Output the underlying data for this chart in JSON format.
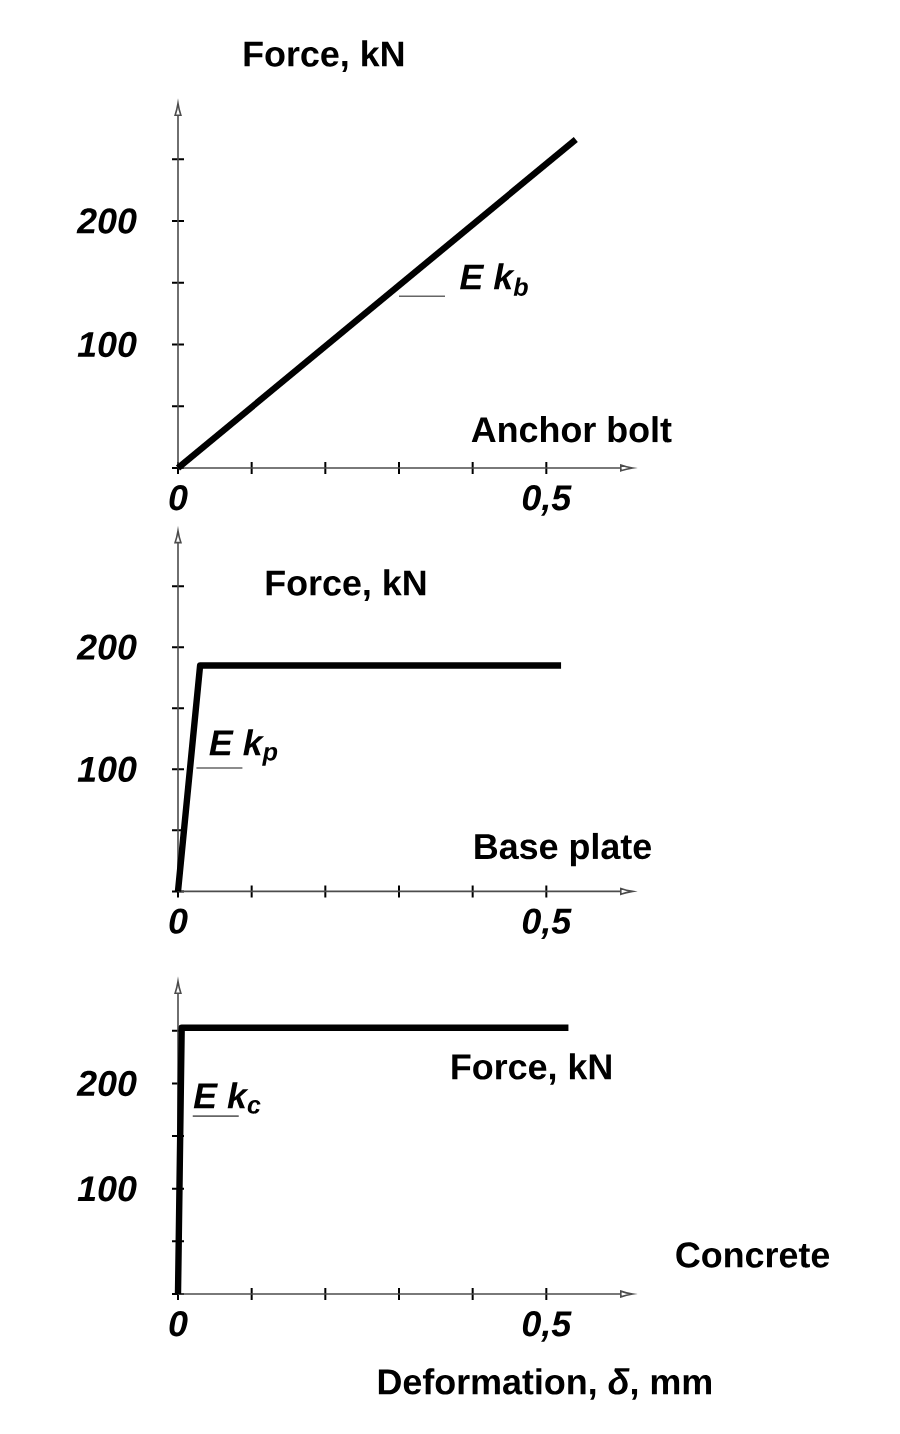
{
  "chart_data": [
    {
      "type": "line",
      "ylabel": "Force,  kN",
      "annotations": [
        {
          "text": "E k$_{b}$",
          "x": 0.3,
          "y": 139
        },
        "Anchor bolt"
      ],
      "xlim": [
        0,
        0.6
      ],
      "ylim": [
        0,
        285
      ],
      "xticks": [
        0,
        {
          "value": 0.1,
          "label": null
        },
        {
          "value": 0.2,
          "label": null
        },
        {
          "value": 0.3,
          "label": null
        },
        {
          "value": 0.4,
          "label": null
        },
        {
          "value": 0.5,
          "label": "0,5"
        }
      ],
      "yticks": [
        {
          "value": 0,
          "label": null
        },
        {
          "value": 50,
          "label": null
        },
        {
          "value": 100,
          "label": "100"
        },
        {
          "value": 150,
          "label": null
        },
        {
          "value": 200,
          "label": "200"
        },
        {
          "value": 250,
          "label": null
        }
      ],
      "series": [
        {
          "color": "#000000",
          "x": [
            0,
            0.54
          ],
          "values": [
            0,
            266
          ]
        }
      ]
    },
    {
      "type": "line",
      "ylabel": "Force,  kN",
      "annotations": [
        {
          "text": "E k$_{p}$",
          "x": 0.025,
          "y": 101
        },
        "Base plate"
      ],
      "xlim": [
        0,
        0.6
      ],
      "ylim": [
        0,
        285
      ],
      "xticks": [
        0,
        {
          "value": 0.1,
          "label": null
        },
        {
          "value": 0.2,
          "label": null
        },
        {
          "value": 0.3,
          "label": null
        },
        {
          "value": 0.4,
          "label": null
        },
        {
          "value": 0.5,
          "label": "0,5"
        }
      ],
      "yticks": [
        {
          "value": 0,
          "label": null
        },
        {
          "value": 50,
          "label": null
        },
        {
          "value": 100,
          "label": "100"
        },
        {
          "value": 150,
          "label": null
        },
        {
          "value": 200,
          "label": "200"
        },
        {
          "value": 250,
          "label": null
        }
      ],
      "series": [
        {
          "color": "#000000",
          "x": [
            0,
            0.03,
            0.52
          ],
          "values": [
            0,
            185,
            185
          ]
        }
      ]
    },
    {
      "type": "line",
      "ylabel": "Force,  kN",
      "xlabel": "Deformation, *δ*, mm",
      "annotations": [
        {
          "text": "E k$_{c}$",
          "x": 0.02,
          "y": 169
        },
        "Concrete"
      ],
      "xlim": [
        0,
        0.6
      ],
      "ylim": [
        0,
        285
      ],
      "xticks": [
        0,
        {
          "value": 0.1,
          "label": null
        },
        {
          "value": 0.2,
          "label": null
        },
        {
          "value": 0.3,
          "label": null
        },
        {
          "value": 0.4,
          "label": null
        },
        {
          "value": 0.5,
          "label": "0,5"
        }
      ],
      "yticks": [
        {
          "value": 0,
          "label": null
        },
        {
          "value": 50,
          "label": null
        },
        {
          "value": 100,
          "label": "100"
        },
        {
          "value": 150,
          "label": null
        },
        {
          "value": 200,
          "label": "200"
        },
        {
          "value": 250,
          "label": null
        }
      ],
      "series": [
        {
          "color": "#000000",
          "x": [
            0,
            0.005,
            0.53
          ],
          "values": [
            0,
            253,
            253
          ]
        }
      ]
    }
  ]
}
